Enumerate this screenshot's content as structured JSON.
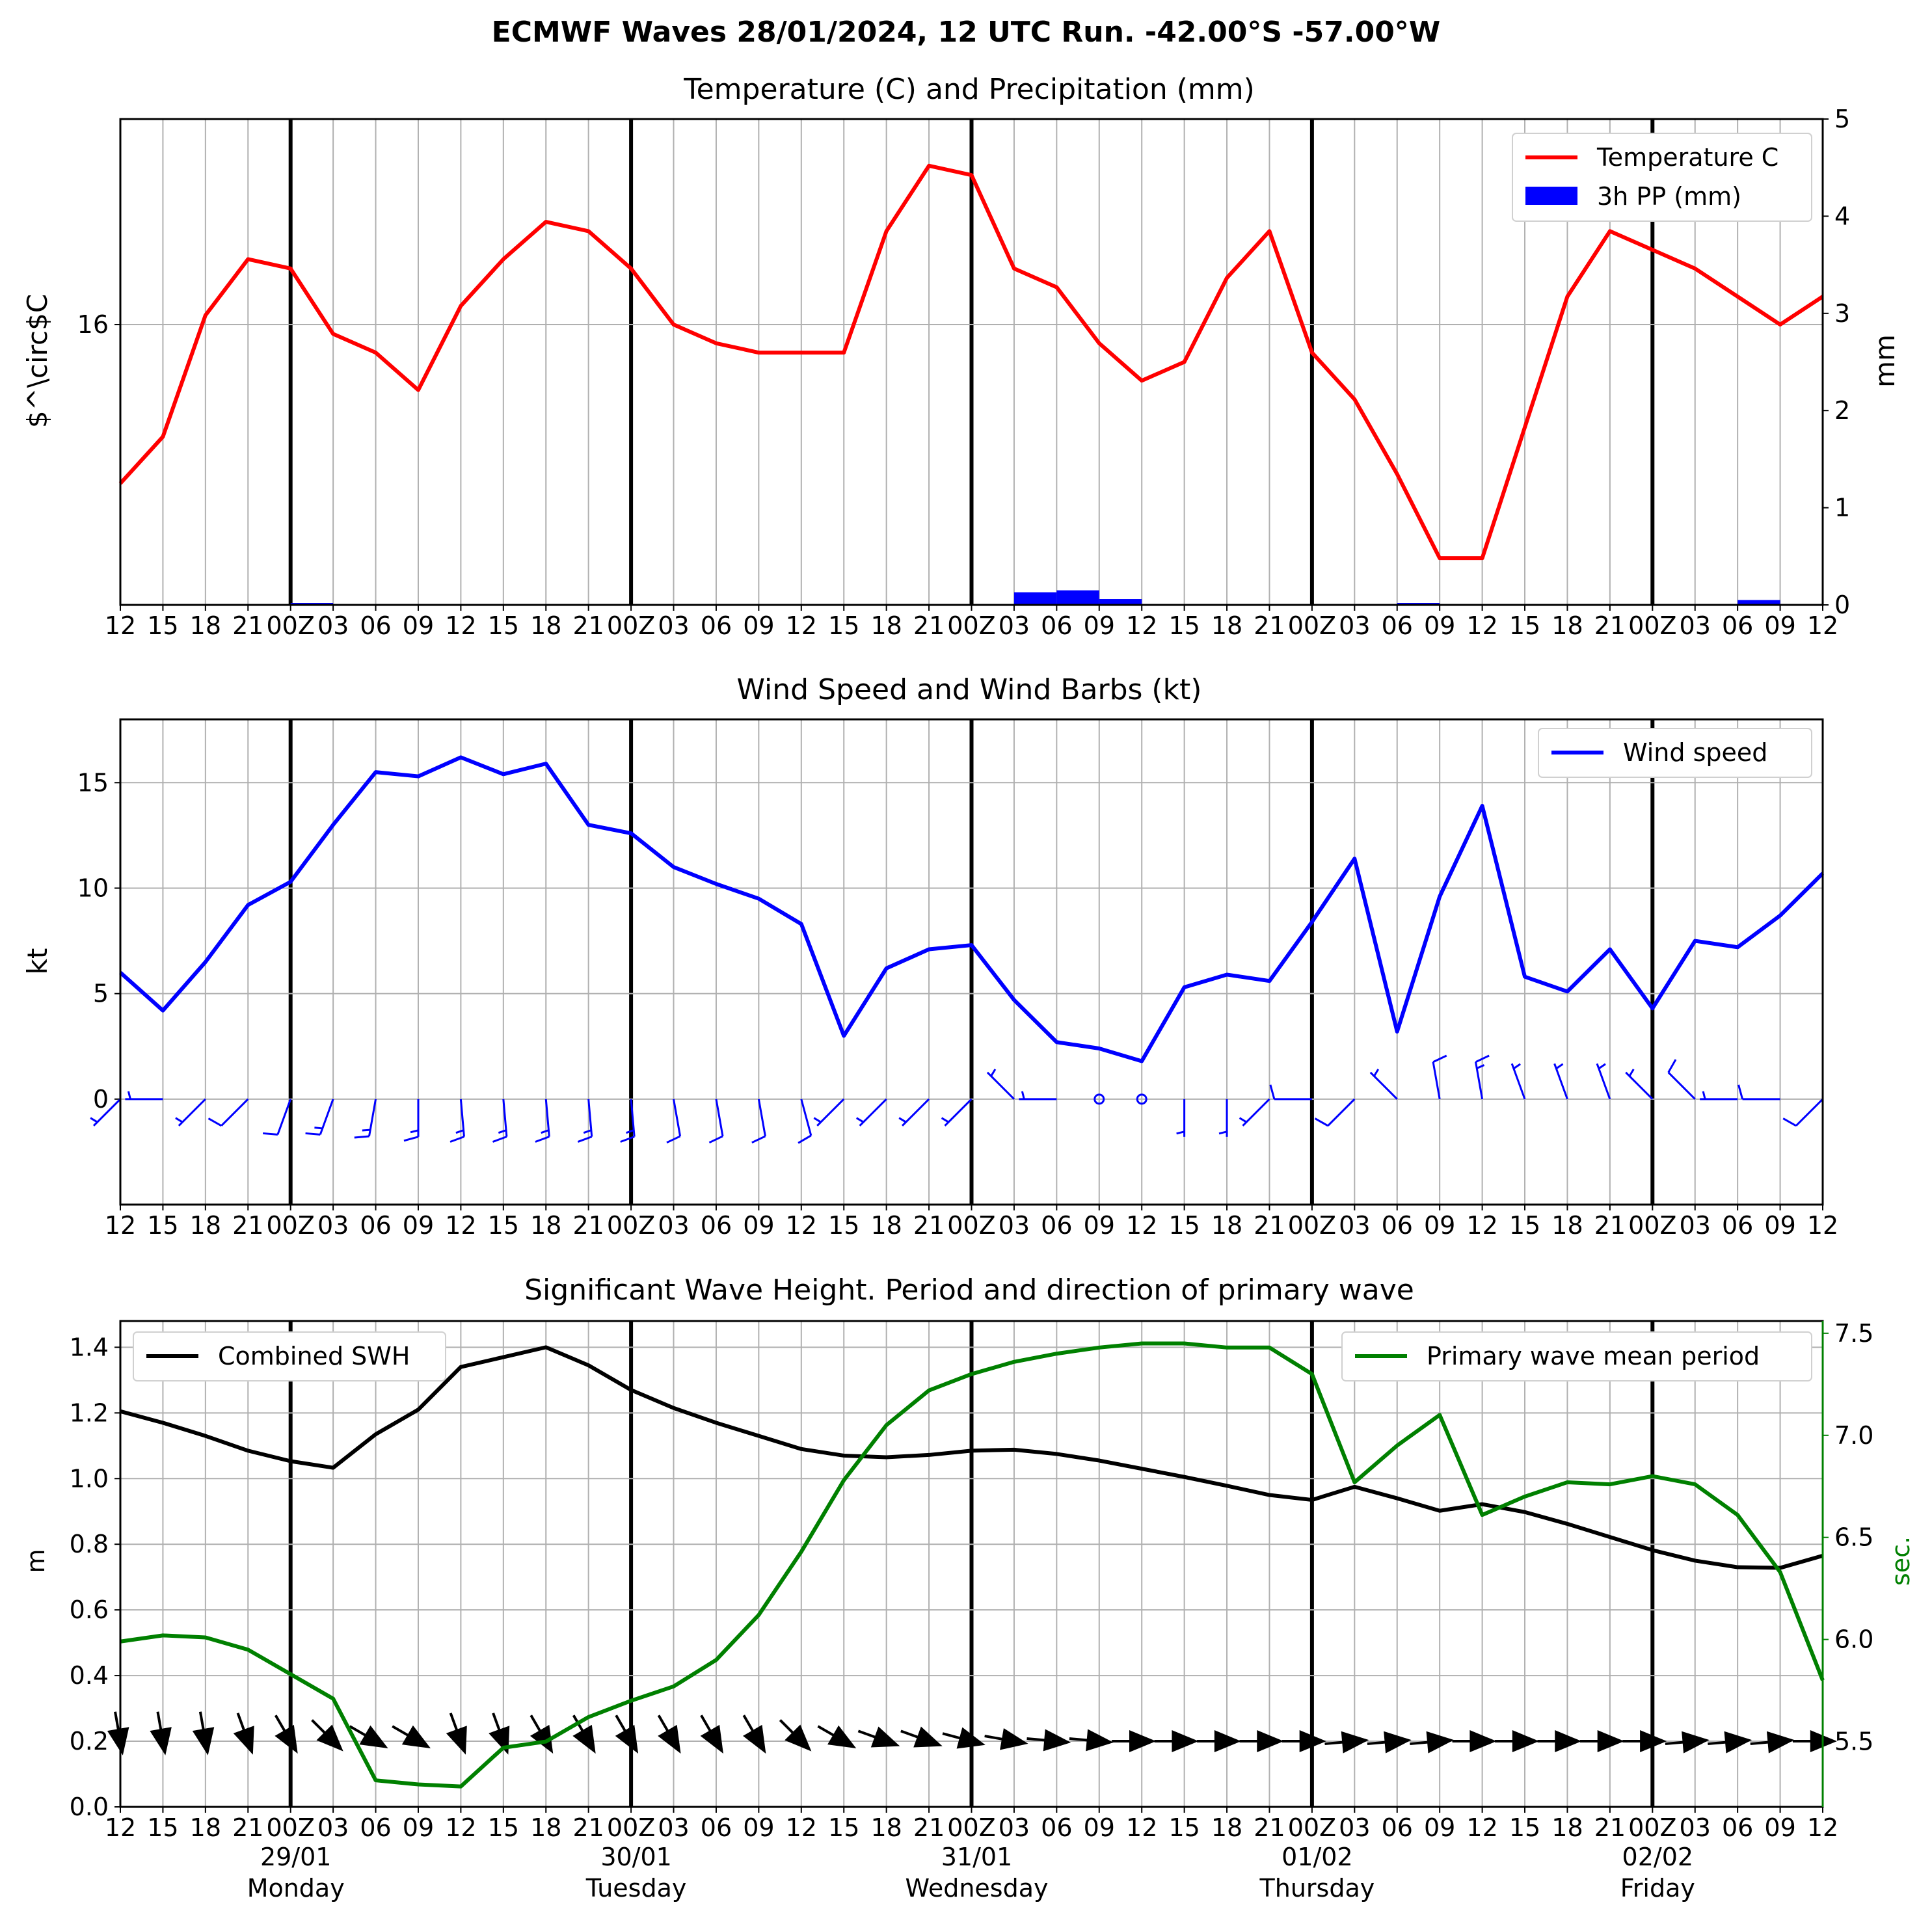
{
  "title": "ECMWF Waves 28/01/2024, 12 UTC Run. -42.00°S -57.00°W",
  "x_tick_labels": [
    "12",
    "15",
    "18",
    "21",
    "00Z",
    "03",
    "06",
    "09",
    "12",
    "15",
    "18",
    "21",
    "00Z",
    "03",
    "06",
    "09",
    "12",
    "15",
    "18",
    "21",
    "00Z",
    "03",
    "06",
    "09",
    "12",
    "15",
    "18",
    "21",
    "00Z",
    "03",
    "06",
    "09",
    "12",
    "15",
    "18",
    "21",
    "00Z",
    "03",
    "06",
    "09",
    "12"
  ],
  "day_labels": [
    {
      "date": "29/01",
      "weekday": "Monday"
    },
    {
      "date": "30/01",
      "weekday": "Tuesday"
    },
    {
      "date": "31/01",
      "weekday": "Wednesday"
    },
    {
      "date": "01/02",
      "weekday": "Thursday"
    },
    {
      "date": "02/02",
      "weekday": "Friday"
    }
  ],
  "chart_data": [
    {
      "type": "line",
      "title": "Temperature (C) and Precipitation (mm)",
      "ylabel": "$^\\circ$C",
      "ylabel_right": "mm",
      "y_ticks": [
        "16"
      ],
      "y_right_ticks": [
        "0",
        "1",
        "2",
        "3",
        "4",
        "5"
      ],
      "ylim": [
        13,
        18.2
      ],
      "ylim_right": [
        0,
        5
      ],
      "grid": true,
      "legend": "top-right",
      "series": [
        {
          "name": "Temperature C",
          "color": "#ff0000",
          "values": [
            14.3,
            14.8,
            16.1,
            16.7,
            16.6,
            15.9,
            15.7,
            15.3,
            16.2,
            16.7,
            17.1,
            17.0,
            16.6,
            16.0,
            15.8,
            15.7,
            15.7,
            15.7,
            17.0,
            17.7,
            17.6,
            16.6,
            16.4,
            15.8,
            15.4,
            15.6,
            16.5,
            17.0,
            15.7,
            15.2,
            14.4,
            13.5,
            13.5,
            14.9,
            16.3,
            17.0,
            16.8,
            16.6,
            16.3,
            16.0,
            16.3
          ]
        },
        {
          "name": "3h PP (mm)",
          "type": "bar",
          "color": "#0000ff",
          "values": [
            0,
            0,
            0,
            0,
            0,
            0.02,
            0,
            0,
            0,
            0,
            0,
            0,
            0,
            0,
            0,
            0,
            0,
            0,
            0,
            0,
            0,
            0.01,
            0.13,
            0.15,
            0.06,
            0.01,
            0,
            0,
            0,
            0.01,
            0.01,
            0.02,
            0,
            0,
            0,
            0,
            0,
            0,
            0,
            0.05,
            0
          ]
        }
      ]
    },
    {
      "type": "line",
      "title": "Wind Speed and Wind Barbs (kt)",
      "ylabel": "kt",
      "y_ticks": [
        "0",
        "5",
        "10",
        "15"
      ],
      "ylim": [
        -5,
        18
      ],
      "grid": true,
      "legend": "top-right",
      "series": [
        {
          "name": "Wind speed",
          "color": "#0000ff",
          "values": [
            6.0,
            4.2,
            6.5,
            9.2,
            10.3,
            13.0,
            15.5,
            15.3,
            16.2,
            15.4,
            15.9,
            13.0,
            12.6,
            11.0,
            10.2,
            9.5,
            8.3,
            3.0,
            6.2,
            7.1,
            7.3,
            4.7,
            2.7,
            2.4,
            1.8,
            5.3,
            5.9,
            5.6,
            8.4,
            11.4,
            3.2,
            9.6,
            13.9,
            5.8,
            5.1,
            7.1,
            4.3,
            7.5,
            7.2,
            8.7,
            10.7
          ]
        }
      ],
      "wind_barbs_from_deg": [
        225,
        270,
        225,
        225,
        200,
        200,
        190,
        180,
        175,
        175,
        175,
        175,
        175,
        170,
        170,
        170,
        165,
        225,
        225,
        225,
        225,
        315,
        270,
        0,
        0,
        180,
        180,
        225,
        270,
        225,
        315,
        350,
        350,
        340,
        340,
        340,
        315,
        315,
        270,
        270,
        225
      ]
    },
    {
      "type": "line",
      "title": "Significant Wave Height. Period and direction of primary wave",
      "ylabel": "m",
      "ylabel_right": "sec.",
      "y_ticks": [
        "0.0",
        "0.2",
        "0.4",
        "0.6",
        "0.8",
        "1.0",
        "1.2",
        "1.4"
      ],
      "y_right_ticks": [
        "5.5",
        "6.0",
        "6.5",
        "7.0",
        "7.5"
      ],
      "ylim": [
        0,
        1.48
      ],
      "ylim_right": [
        5.18,
        7.56
      ],
      "grid": true,
      "legends": [
        "top-left",
        "top-right"
      ],
      "series": [
        {
          "name": "Combined SWH",
          "color": "#000000",
          "axis": "left",
          "values": [
            1.205,
            1.17,
            1.13,
            1.085,
            1.053,
            1.033,
            1.135,
            1.21,
            1.34,
            1.37,
            1.4,
            1.345,
            1.27,
            1.215,
            1.17,
            1.13,
            1.09,
            1.07,
            1.065,
            1.072,
            1.085,
            1.088,
            1.075,
            1.055,
            1.03,
            1.005,
            0.978,
            0.95,
            0.935,
            0.975,
            0.94,
            0.902,
            0.922,
            0.898,
            0.862,
            0.822,
            0.782,
            0.75,
            0.73,
            0.728,
            0.765
          ]
        },
        {
          "name": "Primary wave mean period",
          "color": "#008000",
          "axis": "right",
          "values": [
            5.99,
            6.02,
            6.01,
            5.95,
            5.83,
            5.71,
            5.31,
            5.29,
            5.28,
            5.47,
            5.5,
            5.62,
            5.7,
            5.77,
            5.9,
            6.12,
            6.43,
            6.78,
            7.05,
            7.22,
            7.3,
            7.36,
            7.4,
            7.43,
            7.45,
            7.45,
            7.43,
            7.43,
            7.3,
            6.77,
            6.95,
            7.1,
            6.61,
            6.7,
            6.77,
            6.76,
            6.8,
            6.76,
            6.61,
            6.33,
            5.8
          ]
        }
      ],
      "wave_direction_from_deg": [
        350,
        350,
        350,
        340,
        330,
        315,
        300,
        300,
        340,
        340,
        330,
        330,
        330,
        330,
        330,
        330,
        315,
        300,
        290,
        290,
        285,
        280,
        275,
        275,
        270,
        270,
        270,
        270,
        270,
        265,
        265,
        265,
        270,
        270,
        270,
        270,
        270,
        265,
        265,
        265,
        270
      ]
    }
  ]
}
